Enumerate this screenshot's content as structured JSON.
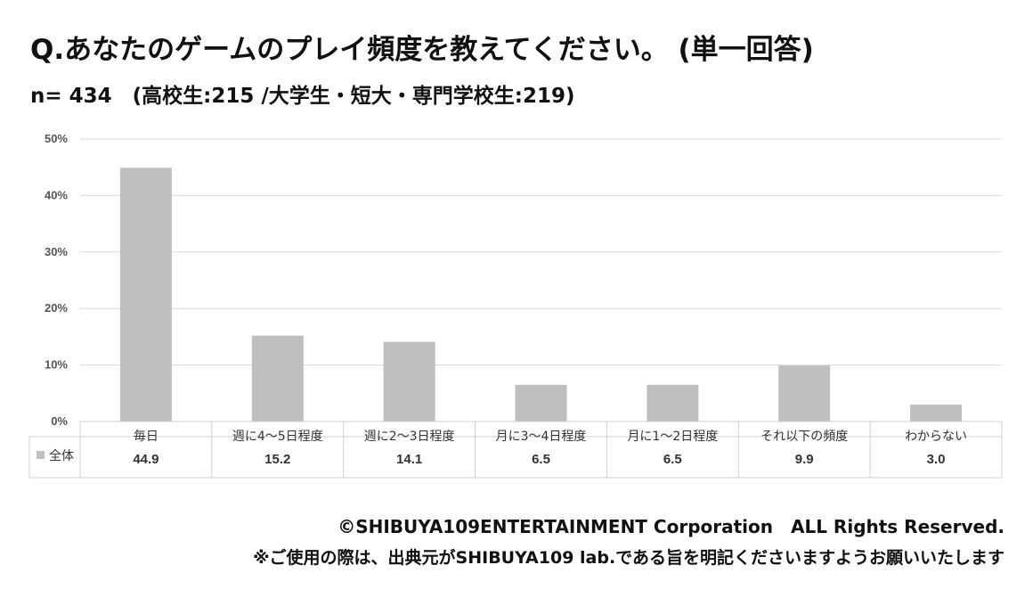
{
  "title": "Q.あなたのゲームのプレイ頻度を教えてください。 (単一回答)",
  "subtitle": "n= 434　(高校生:215 /大学生・短大・専門学校生:219)",
  "footer": {
    "copyright": "©SHIBUYA109ENTERTAINMENT Corporation　ALL Rights Reserved.",
    "note": "※ご使用の際は、出典元がSHIBUYA109 lab.である旨を明記くださいますようお願いいたします"
  },
  "chart_data": {
    "type": "bar",
    "categories": [
      "毎日",
      "週に4～5日程度",
      "週に2～3日程度",
      "月に3～4日程度",
      "月に1～2日程度",
      "それ以下の頻度",
      "わからない"
    ],
    "series": [
      {
        "name": "全体",
        "values": [
          44.9,
          15.2,
          14.1,
          6.5,
          6.5,
          9.9,
          3.0
        ],
        "value_labels": [
          "44.9",
          "15.2",
          "14.1",
          "6.5",
          "6.5",
          "9.9",
          "3.0"
        ]
      }
    ],
    "yticks": [
      "0%",
      "10%",
      "20%",
      "30%",
      "40%",
      "50%"
    ],
    "ylim": [
      0,
      50
    ],
    "grid": true,
    "legend": "data-table",
    "bar_color": "#bfbfbf"
  }
}
